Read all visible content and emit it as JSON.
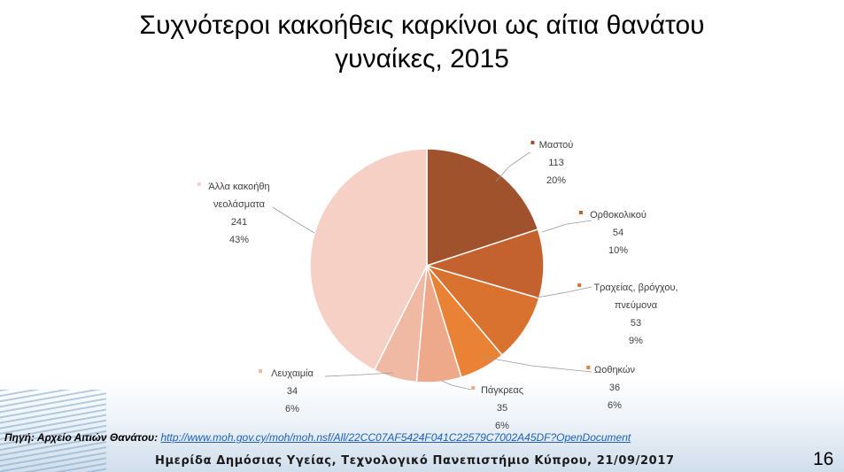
{
  "slide": {
    "title_line1": "Συχνότεροι κακοήθεις καρκίνοι ως αίτια θανάτου",
    "title_line2": "γυναίκες, 2015",
    "source_label": "Πηγή: Αρχείο Αιτιών Θανάτου:",
    "source_link": "http://www.moh.gov.cy/moh/moh.nsf/All/22CC07AF5424F041C22579C7002A45DF?OpenDocument",
    "footer": "Ημερίδα Δημόσιας Υγείας, Τεχνολογικό Πανεπιστήμιο Κύπρου, 21/09/2017",
    "page_number": "16"
  },
  "chart_data": {
    "type": "pie",
    "title": "Συχνότεροι κακοήθεις καρκίνοι ως αίτια θανάτου γυναίκες, 2015",
    "slices": [
      {
        "label": "Μαστού",
        "label_lines": [
          "Μαστού"
        ],
        "value": 113,
        "percent": "20%",
        "color": "#a0522d"
      },
      {
        "label": "Ορθοκολικού",
        "label_lines": [
          "Ορθοκολικού"
        ],
        "value": 54,
        "percent": "10%",
        "color": "#c4622f"
      },
      {
        "label": "Τραχείας, βρόγχου, πνεύμονα",
        "label_lines": [
          "Τραχείας, βρόγχου,",
          "πνεύμονα"
        ],
        "value": 53,
        "percent": "9%",
        "color": "#d9722f"
      },
      {
        "label": "Ωοθηκών",
        "label_lines": [
          "Ωοθηκών"
        ],
        "value": 36,
        "percent": "6%",
        "color": "#ea8236"
      },
      {
        "label": "Πάγκρεας",
        "label_lines": [
          "Πάγκρεας"
        ],
        "value": 35,
        "percent": "6%",
        "color": "#eda98a"
      },
      {
        "label": "Λευχαιμία",
        "label_lines": [
          "Λευχαιμία"
        ],
        "value": 34,
        "percent": "6%",
        "color": "#f0b9a4"
      },
      {
        "label": "Άλλα κακοήθη νεολάσματα",
        "label_lines": [
          "Άλλα κακοήθη",
          "νεολάσματα"
        ],
        "value": 241,
        "percent": "43%",
        "color": "#f6d0c4"
      }
    ],
    "legend": "labels beside slices"
  }
}
